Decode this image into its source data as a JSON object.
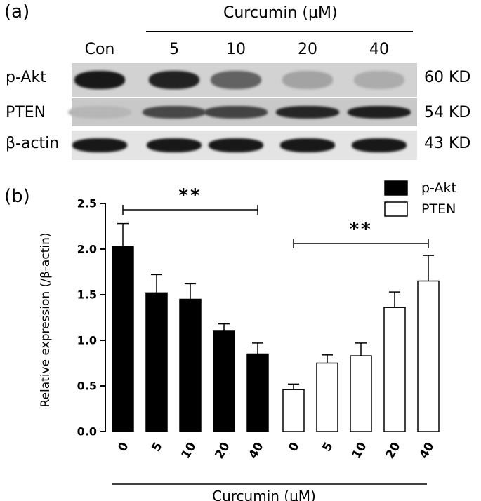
{
  "panel_a": {
    "label": "(a)",
    "group_title": "Curcumin (μM)",
    "lanes": [
      "Con",
      "5",
      "10",
      "20",
      "40"
    ],
    "rows": [
      {
        "label": "p-Akt",
        "size": "60 KD",
        "intensity": [
          0.95,
          0.9,
          0.55,
          0.2,
          0.15
        ]
      },
      {
        "label": "PTEN",
        "size": "54 KD",
        "intensity": [
          0.1,
          0.7,
          0.72,
          0.88,
          0.92
        ]
      },
      {
        "label": "β-actin",
        "size": "43 KD",
        "intensity": [
          0.95,
          0.95,
          0.95,
          0.95,
          0.95
        ]
      }
    ]
  },
  "panel_b": {
    "label": "(b)",
    "significance": "**",
    "chart_data": {
      "type": "bar",
      "categories": [
        "0",
        "5",
        "10",
        "20",
        "40"
      ],
      "ylabel": "Relative expression (/β-actin)",
      "xlabel": "Curcumin (μM)",
      "ylim": [
        0,
        2.5
      ],
      "yticks": [
        "0.0",
        "0.5",
        "1.0",
        "1.5",
        "2.0",
        "2.5"
      ],
      "legend_position": "top-right",
      "series": [
        {
          "name": "p-Akt",
          "fill": "#000000",
          "values": [
            2.03,
            1.52,
            1.45,
            1.1,
            0.85
          ],
          "errors": [
            0.25,
            0.2,
            0.17,
            0.08,
            0.12
          ]
        },
        {
          "name": "PTEN",
          "fill": "#ffffff",
          "values": [
            0.46,
            0.75,
            0.83,
            1.36,
            1.65
          ],
          "errors": [
            0.06,
            0.09,
            0.14,
            0.17,
            0.28
          ]
        }
      ]
    }
  }
}
